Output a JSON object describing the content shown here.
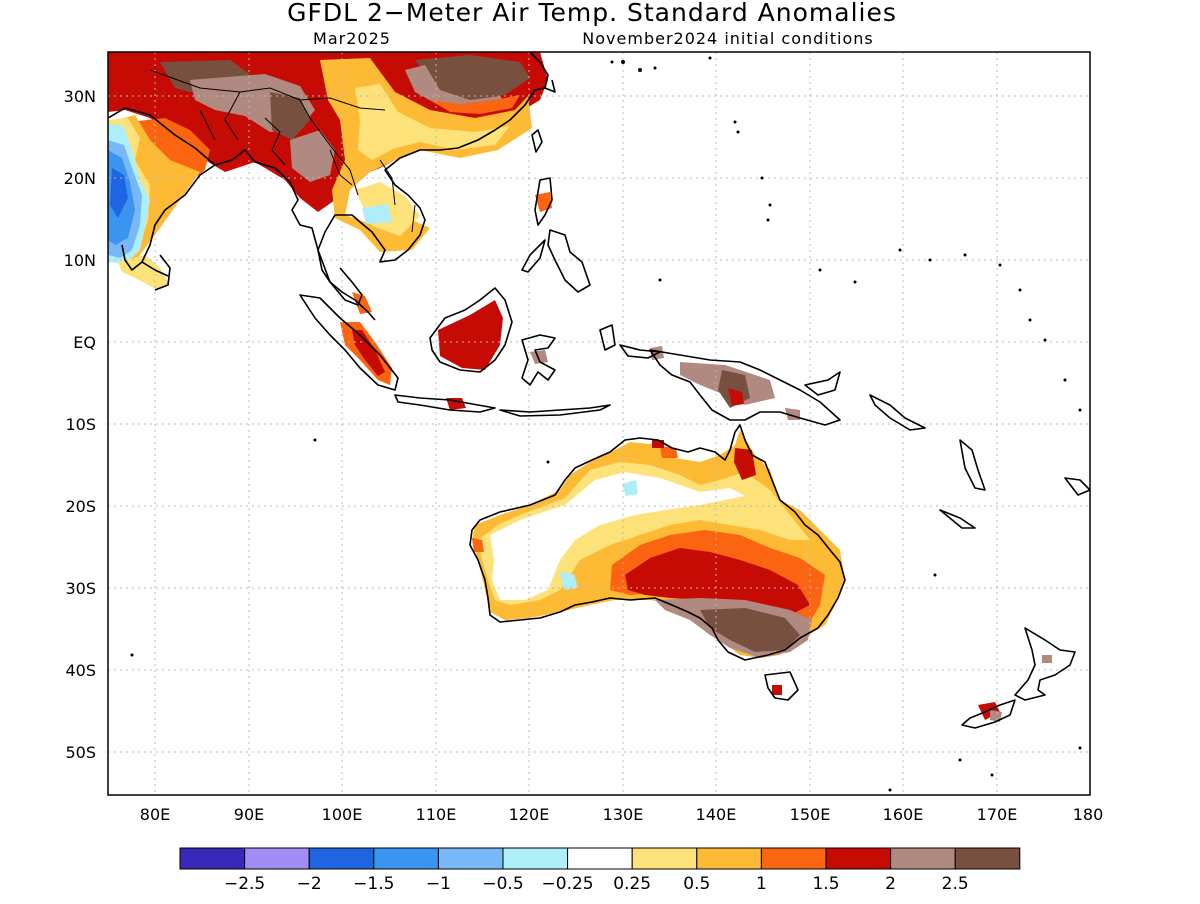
{
  "header": {
    "title": "GFDL 2−Meter Air Temp. Standard Anomalies",
    "valid_month": "Mar2025",
    "init_conditions": "November2024 initial conditions"
  },
  "map": {
    "lon_range": [
      75,
      180
    ],
    "lat_range": [
      -55,
      35
    ],
    "lat_labels": [
      "30N",
      "20N",
      "10N",
      "EQ",
      "10S",
      "20S",
      "30S",
      "40S",
      "50S"
    ],
    "lon_labels": [
      "80E",
      "90E",
      "100E",
      "110E",
      "120E",
      "130E",
      "140E",
      "150E",
      "160E",
      "170E",
      "180"
    ]
  },
  "legend": {
    "colors": [
      "#3a28b8",
      "#9f8cf5",
      "#1f64e0",
      "#3b94ef",
      "#78b8f7",
      "#aeeef8",
      "#ffffff",
      "#fde27a",
      "#fdbb35",
      "#fb6410",
      "#c60a04",
      "#b08a80",
      "#77503f"
    ],
    "labels": [
      "−2.5",
      "−2",
      "−1.5",
      "−1",
      "−0.5",
      "−0.25",
      "0.25",
      "0.5",
      "1",
      "1.5",
      "2",
      "2.5"
    ]
  }
}
